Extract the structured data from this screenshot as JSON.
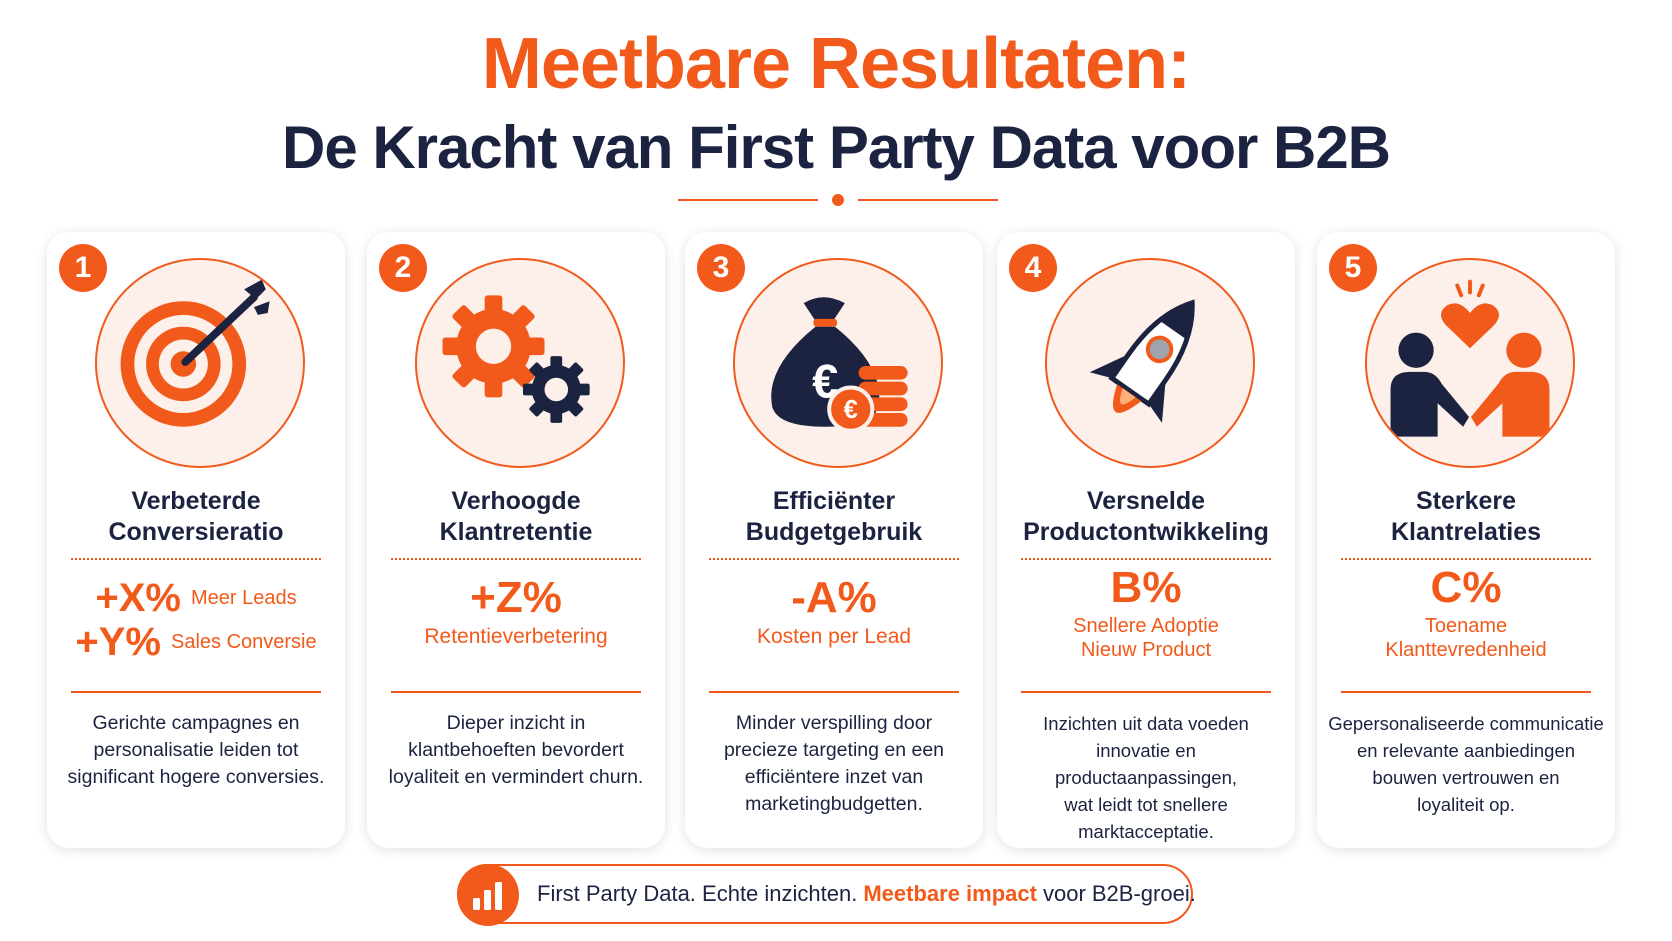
{
  "header": {
    "title_line1": "Meetbare Resultaten:",
    "title_line2": "De Kracht van First Party Data voor B2B"
  },
  "colors": {
    "accent": "#f25a1b",
    "navy": "#1b2340",
    "icon_bg": "#fdf0ea"
  },
  "cards": [
    {
      "number": "1",
      "icon": "target-icon",
      "title_line1": "Verbeterde",
      "title_line2": "Conversieratio",
      "metric1_value": "+X%",
      "metric1_label": "Meer Leads",
      "metric2_value": "+Y%",
      "metric2_label": "Sales Conversie",
      "desc_lines": [
        "Gerichte campagnes en",
        "personalisatie leiden tot",
        "significant hogere conversies."
      ]
    },
    {
      "number": "2",
      "icon": "gears-icon",
      "title_line1": "Verhoogde",
      "title_line2": "Klantretentie",
      "metric_value": "+Z%",
      "metric_label_line1": "Retentieverbetering",
      "desc_lines": [
        "Dieper inzicht in",
        "klantbehoeften bevordert",
        "loyaliteit en vermindert churn."
      ]
    },
    {
      "number": "3",
      "icon": "money-bag-icon",
      "title_line1": "Efficiënter",
      "title_line2": "Budgetgebruik",
      "metric_value": "-A%",
      "metric_label_line1": "Kosten per Lead",
      "desc_lines": [
        "Minder verspilling door",
        "precieze targeting en een",
        "efficiëntere inzet van",
        "marketingbudgetten."
      ]
    },
    {
      "number": "4",
      "icon": "rocket-icon",
      "title_line1": "Versnelde",
      "title_line2": "Productontwikkeling",
      "metric_value": "B%",
      "metric_label_line1": "Snellere Adoptie",
      "metric_label_line2": "Nieuw Product",
      "desc_lines": [
        "Inzichten uit data voeden",
        "innovatie en productaanpassingen,",
        "wat leidt tot snellere",
        "marktacceptatie."
      ]
    },
    {
      "number": "5",
      "icon": "handshake-heart-icon",
      "title_line1": "Sterkere",
      "title_line2": "Klantrelaties",
      "metric_value": "C%",
      "metric_label_line1": "Toename",
      "metric_label_line2": "Klanttevredenheid",
      "desc_lines": [
        "Gepersonaliseerde communicatie",
        "en relevante aanbiedingen",
        "bouwen vertrouwen en",
        "loyaliteit op."
      ]
    }
  ],
  "footer": {
    "icon": "bar-chart-icon",
    "text_part1": "First Party Data. Echte inzichten.",
    "text_highlight": "Meetbare impact",
    "text_part2": "voor B2B-groei."
  }
}
